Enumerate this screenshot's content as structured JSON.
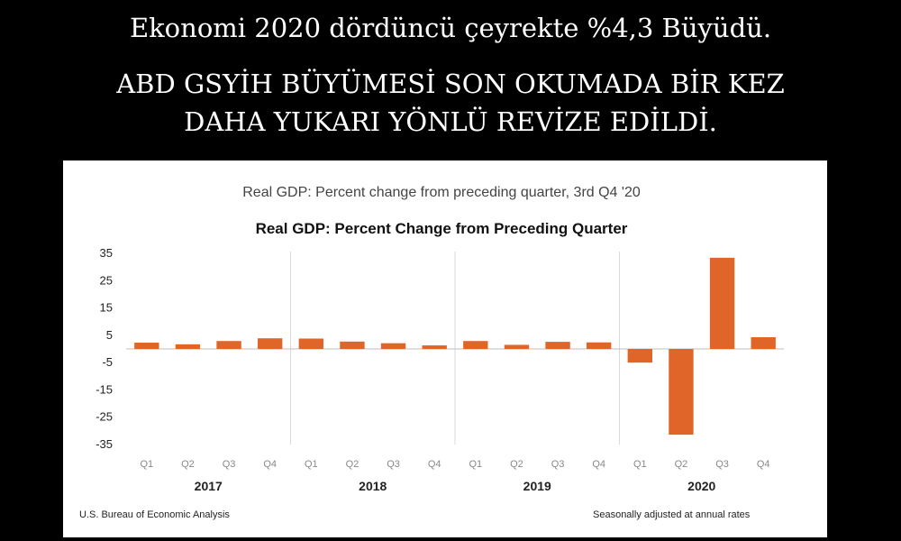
{
  "headline": {
    "line1": "Ekonomi 2020 dördüncü çeyrekte %4,3 Büyüdü.",
    "line2a": "ABD GSYİH BÜYÜMESİ SON OKUMADA BİR KEZ",
    "line2b": "DAHA YUKARI YÖNLÜ REVİZE EDİLDİ."
  },
  "colors": {
    "bar": "#e06528",
    "background": "#000000",
    "panel": "#ffffff",
    "grid": "#d9d9d9"
  },
  "footer": {
    "source": "U.S. Bureau of Economic Analysis",
    "note": "Seasonally adjusted at annual rates"
  },
  "chart_data": {
    "type": "bar",
    "subtitle": "Real GDP: Percent change from preceding quarter, 3rd Q4 '20",
    "title": "Real GDP:  Percent Change from Preceding Quarter",
    "xlabel": "",
    "ylabel": "",
    "ylim": [
      -35,
      35
    ],
    "yticks": [
      35,
      25,
      15,
      5,
      -5,
      -15,
      -25,
      -35
    ],
    "years": [
      "2017",
      "2018",
      "2019",
      "2020"
    ],
    "categories": [
      "Q1",
      "Q2",
      "Q3",
      "Q4",
      "Q1",
      "Q2",
      "Q3",
      "Q4",
      "Q1",
      "Q2",
      "Q3",
      "Q4",
      "Q1",
      "Q2",
      "Q3",
      "Q4"
    ],
    "values": [
      2.3,
      1.7,
      2.9,
      3.9,
      3.8,
      2.7,
      2.1,
      1.3,
      2.9,
      1.5,
      2.6,
      2.4,
      -5.0,
      -31.4,
      33.4,
      4.3
    ]
  }
}
